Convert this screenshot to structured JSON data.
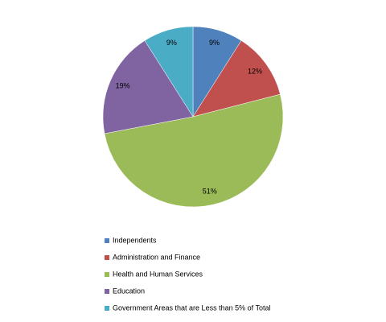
{
  "chart_data": {
    "type": "pie",
    "categories": [
      "Independents",
      "Administration and Finance",
      "Health and Human Services",
      "Education",
      "Government Areas that are Less than 5% of Total"
    ],
    "values": [
      9,
      12,
      51,
      19,
      9
    ],
    "value_labels": [
      "9%",
      "12%",
      "51%",
      "19%",
      "9%"
    ],
    "colors": [
      "#4f81bd",
      "#c0504d",
      "#9bbb59",
      "#8064a2",
      "#4bacc6"
    ]
  }
}
